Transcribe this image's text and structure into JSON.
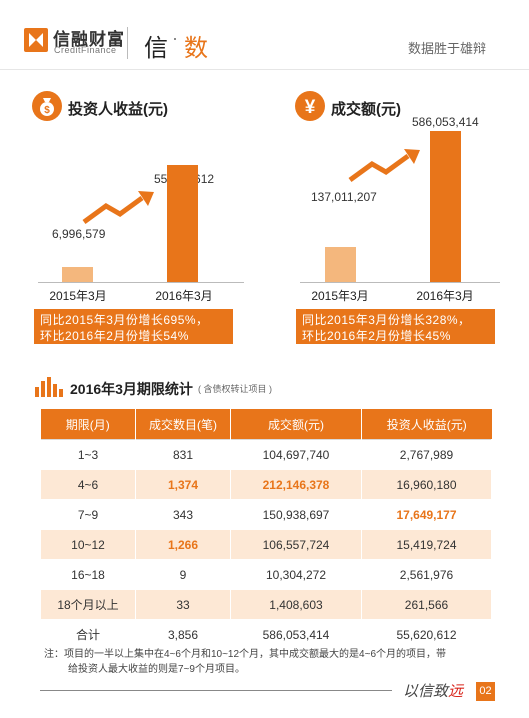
{
  "header": {
    "logo_cn": "信融财富",
    "logo_en": "CreditFinance",
    "brand_part1": "信",
    "brand_dot": "·",
    "brand_part2": "数",
    "slogan": "数据胜于雄辩"
  },
  "colors": {
    "accent": "#e8751a",
    "accent_light": "#f4b77d",
    "row_tint": "#fde8d5"
  },
  "panel_investor": {
    "icon": "money-bag-icon",
    "title": "投资人收益(元)",
    "note_line1": "同比2015年3月份增长695%，",
    "note_line2": "环比2016年2月份增长54%"
  },
  "panel_volume": {
    "icon": "yen-icon",
    "title": "成交额(元)",
    "note_line1": "同比2015年3月份增长328%，",
    "note_line2": "环比2016年2月份增长45%"
  },
  "chart_data": [
    {
      "type": "bar",
      "title": "投资人收益(元)",
      "categories": [
        "2015年3月",
        "2016年3月"
      ],
      "values": [
        6996579,
        55620612
      ],
      "value_labels": [
        "6,996,579",
        "55,620,612"
      ],
      "ylim": [
        0,
        90000000
      ]
    },
    {
      "type": "bar",
      "title": "成交额(元)",
      "categories": [
        "2015年3月",
        "2016年3月"
      ],
      "values": [
        137011207,
        586053414
      ],
      "value_labels": [
        "137,011,207",
        "586,053,414"
      ],
      "ylim": [
        0,
        600000000
      ]
    }
  ],
  "stats": {
    "title": "2016年3月期限统计",
    "subtitle": "( 含债权转让项目 )",
    "icon": "bar-chart-icon",
    "headers": [
      "期限(月)",
      "成交数目(笔)",
      "成交额(元)",
      "投资人收益(元)"
    ],
    "rows": [
      [
        "1~3",
        "831",
        "104,697,740",
        "2,767,989"
      ],
      [
        "4~6",
        "1,374",
        "212,146,378",
        "16,960,180"
      ],
      [
        "7~9",
        "343",
        "150,938,697",
        "17,649,177"
      ],
      [
        "10~12",
        "1,266",
        "106,557,724",
        "15,419,724"
      ],
      [
        "16~18",
        "9",
        "10,304,272",
        "2,561,976"
      ],
      [
        "18个月以上",
        "33",
        "1,408,603",
        "261,566"
      ],
      [
        "合计",
        "3,856",
        "586,053,414",
        "55,620,612"
      ]
    ],
    "highlighted_cells": [
      [
        1,
        1
      ],
      [
        1,
        2
      ],
      [
        2,
        3
      ],
      [
        3,
        1
      ]
    ]
  },
  "footnote_line1": "注：项目的一半以上集中在4~6个月和10~12个月，其中成交额最大的是4~6个月的项目，带",
  "footnote_line2": "给投资人最大收益的则是7~9个月项目。",
  "footer": {
    "script_text": "以信致",
    "script_accent": "远",
    "page_number": "02"
  }
}
